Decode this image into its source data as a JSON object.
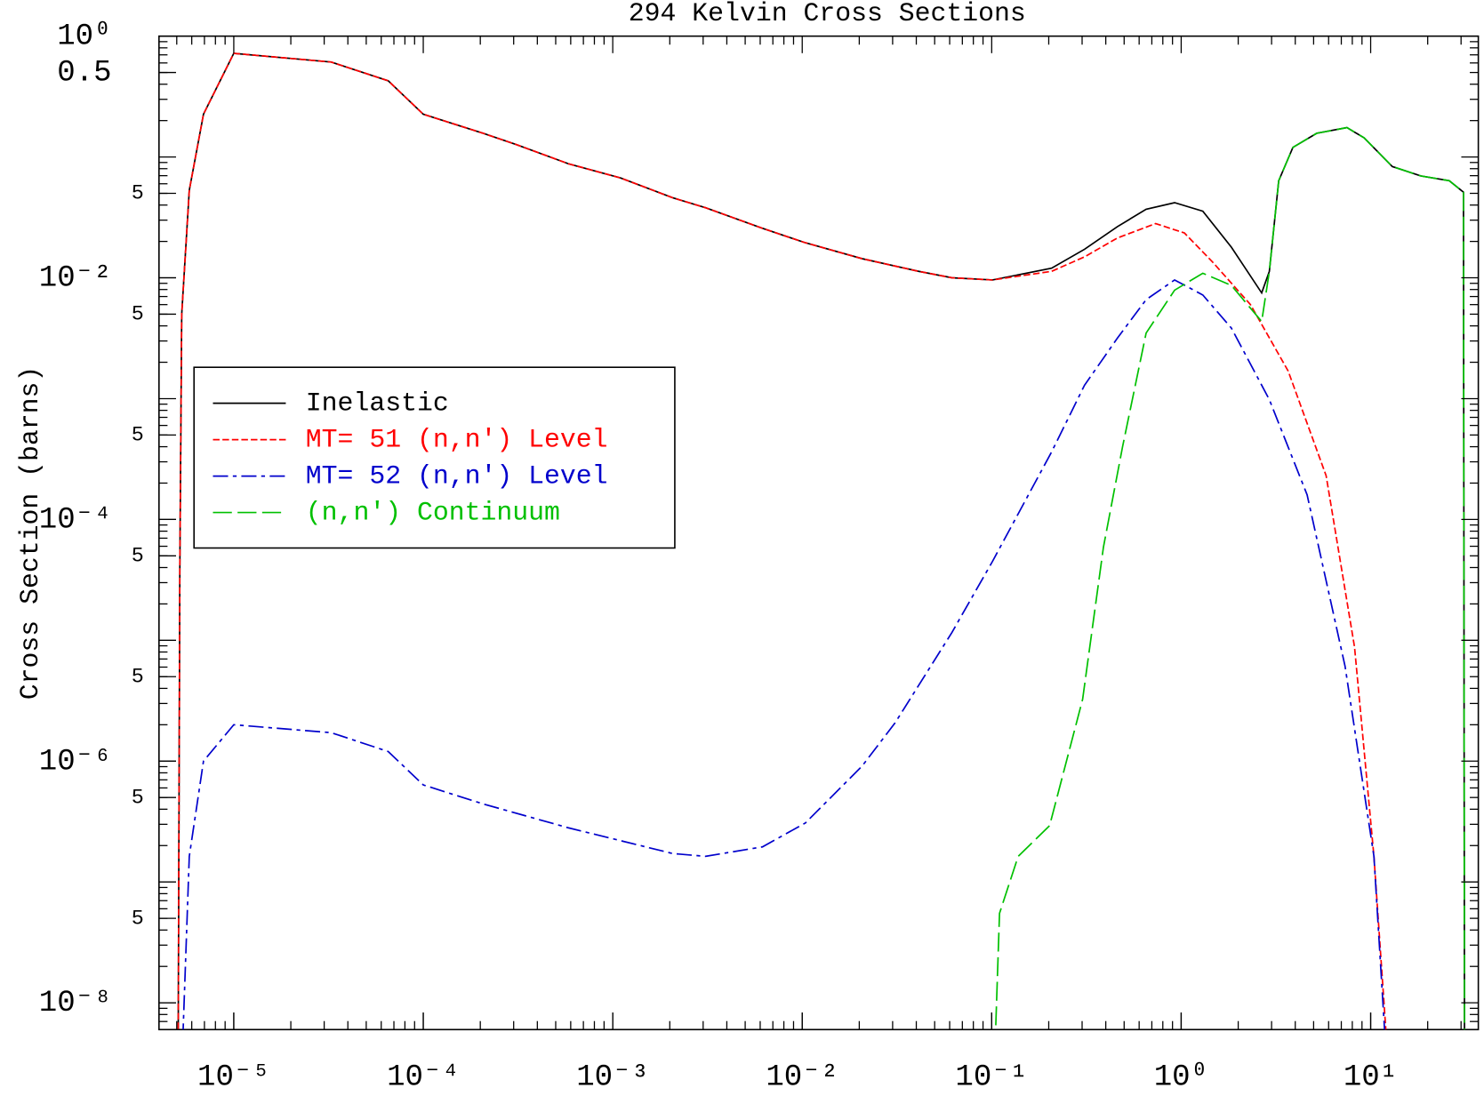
{
  "chart_data": {
    "type": "line",
    "title": "294 Kelvin Cross Sections",
    "y_label": "Cross Section (barns)",
    "log_x": true,
    "log_y": true,
    "xlim": [
      4.03e-06,
      37
    ],
    "ylim": [
      6e-09,
      1
    ],
    "xticks": [
      {
        "value": 1e-05,
        "label": "10⁻⁵"
      },
      {
        "value": 0.0001,
        "label": "10⁻⁴"
      },
      {
        "value": 0.001,
        "label": "10⁻³"
      },
      {
        "value": 0.01,
        "label": "10⁻²"
      },
      {
        "value": 0.1,
        "label": "10⁻¹"
      },
      {
        "value": 1,
        "label": "10⁰"
      },
      {
        "value": 10,
        "label": "10¹"
      }
    ],
    "yticks": [
      {
        "value": 1,
        "label": "10⁰"
      },
      0.5,
      {
        "value": 0.05,
        "label": "5"
      },
      {
        "value": 0.01,
        "label": "10⁻²"
      },
      {
        "value": 0.005,
        "label": "5"
      },
      {
        "value": 0.0005,
        "label": "5"
      },
      {
        "value": 0.0001,
        "label": "10⁻⁴"
      },
      {
        "value": 5e-05,
        "label": "5"
      },
      {
        "value": 5e-06,
        "label": "5"
      },
      {
        "value": 1e-06,
        "label": "10⁻⁶"
      },
      {
        "value": 5e-07,
        "label": "5"
      },
      {
        "value": 5e-08,
        "label": "5"
      },
      {
        "value": 1e-08,
        "label": "10⁻⁸"
      }
    ],
    "legend": "upper left",
    "series": [
      {
        "name": "Inelastic",
        "color": "#000000",
        "line_style": "solid",
        "x": [
          5.07e-06,
          5.19e-06,
          5.31e-06,
          5.82e-06,
          6.92e-06,
          1e-05,
          3.27e-05,
          6.53e-05,
          0.0001,
          0.000207,
          0.000309,
          0.000582,
          0.0011,
          0.00207,
          0.00309,
          0.00617,
          0.0104,
          0.0207,
          0.0412,
          0.0617,
          0.101,
          0.207,
          0.309,
          0.462,
          0.653,
          0.923,
          1.3,
          1.84,
          2.66,
          2.92,
          3.27,
          3.89,
          5.19,
          7.5,
          9.23,
          13.0,
          18.4,
          26.0,
          30.9,
          31.3
        ],
        "values": [
          1e-09,
          3.76e-05,
          0.005,
          0.053,
          0.226,
          0.72,
          0.61,
          0.427,
          0.226,
          0.157,
          0.127,
          0.088,
          0.067,
          0.046,
          0.038,
          0.0257,
          0.0195,
          0.0144,
          0.0113,
          0.01,
          0.0096,
          0.012,
          0.0172,
          0.0266,
          0.0369,
          0.0419,
          0.0356,
          0.0179,
          0.0075,
          0.0113,
          0.0636,
          0.12,
          0.157,
          0.175,
          0.144,
          0.0834,
          0.0696,
          0.0636,
          0.0511,
          1e-09
        ]
      },
      {
        "name": "MT= 51 (n,n') Level",
        "color": "#ff0000",
        "line_style": "dashed",
        "x": [
          5.07e-06,
          5.19e-06,
          5.31e-06,
          5.82e-06,
          6.92e-06,
          1e-05,
          3.27e-05,
          6.53e-05,
          0.0001,
          0.000207,
          0.000309,
          0.000582,
          0.0011,
          0.00207,
          0.00309,
          0.00617,
          0.0104,
          0.0207,
          0.0412,
          0.0617,
          0.101,
          0.207,
          0.309,
          0.462,
          0.733,
          1.04,
          1.46,
          2.32,
          3.67,
          5.82,
          8.22,
          10.4,
          13.0
        ],
        "values": [
          1e-09,
          3.76e-05,
          0.005,
          0.053,
          0.226,
          0.72,
          0.61,
          0.427,
          0.226,
          0.157,
          0.127,
          0.088,
          0.067,
          0.046,
          0.038,
          0.0257,
          0.0195,
          0.0144,
          0.0113,
          0.01,
          0.0096,
          0.0113,
          0.0149,
          0.0214,
          0.0281,
          0.0235,
          0.0136,
          0.006,
          0.00169,
          0.00023,
          8.8e-06,
          1.63e-07,
          1e-09
        ]
      },
      {
        "name": "MT= 52 (n,n') Level",
        "color": "#0000cc",
        "line_style": "dashdot",
        "x": [
          5.19e-06,
          5.82e-06,
          6.92e-06,
          1e-05,
          3.27e-05,
          6.53e-05,
          0.0001,
          0.000207,
          0.000582,
          0.00207,
          0.00309,
          0.00617,
          0.0104,
          0.0207,
          0.0309,
          0.0617,
          0.101,
          0.207,
          0.309,
          0.462,
          0.653,
          0.923,
          1.3,
          1.84,
          2.92,
          4.62,
          7.33,
          10.4,
          12.7
        ],
        "values": [
          1e-09,
          1.63e-07,
          1e-06,
          2e-06,
          1.72e-06,
          1.2e-06,
          6.35e-07,
          4.42e-07,
          2.81e-07,
          1.72e-07,
          1.63e-07,
          1.95e-07,
          3.08e-07,
          9.1e-07,
          2.07e-06,
          1.16e-05,
          4.5e-05,
          0.000362,
          0.00129,
          0.00319,
          0.0066,
          0.0096,
          0.0072,
          0.00383,
          0.00098,
          0.00016,
          6.1e-06,
          1.63e-07,
          1e-09
        ]
      },
      {
        "name": "(n,n') Continuum",
        "color": "#00c000",
        "line_style": "longdash",
        "x": [
          0.101,
          0.11,
          0.138,
          0.202,
          0.302,
          0.389,
          0.49,
          0.653,
          0.923,
          1.3,
          1.84,
          2.66,
          2.92,
          3.27,
          3.89,
          5.19,
          7.5,
          9.23,
          13.0,
          18.4,
          26.0,
          30.9,
          31.3
        ],
        "values": [
          1e-09,
          5.5e-08,
          1.63e-07,
          2.92e-07,
          3.25e-06,
          5.9e-05,
          0.000396,
          0.00349,
          0.0079,
          0.0109,
          0.00865,
          0.00435,
          0.0113,
          0.0636,
          0.12,
          0.157,
          0.175,
          0.144,
          0.0834,
          0.0696,
          0.0636,
          0.0511,
          1e-09
        ]
      }
    ]
  }
}
